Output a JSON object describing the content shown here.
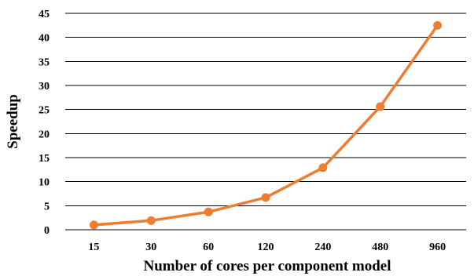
{
  "chart_data": {
    "type": "line",
    "title": "",
    "xlabel": "Number of cores per component model",
    "ylabel": "Speedup",
    "categories": [
      "15",
      "30",
      "60",
      "120",
      "240",
      "480",
      "960"
    ],
    "series": [
      {
        "values": [
          1.0,
          1.9,
          3.7,
          6.7,
          12.9,
          25.6,
          42.5
        ],
        "color": "#ED7D31"
      }
    ],
    "ylim": [
      0,
      45
    ],
    "yticks": [
      "0",
      "5",
      "10",
      "15",
      "20",
      "25",
      "30",
      "35",
      "40",
      "45"
    ],
    "grid": true,
    "legend": "none",
    "gridline_color": "#000000"
  }
}
